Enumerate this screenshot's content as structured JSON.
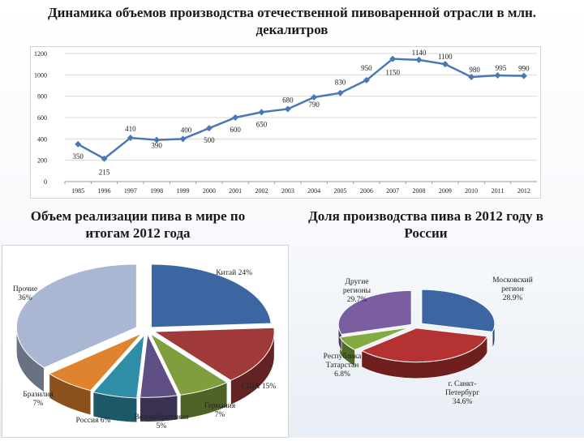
{
  "titles": {
    "main": "Динамика объемов производства отечественной пивоваренной отрасли в млн. декалитров",
    "pie1": "Объем реализации пива в мире по итогам 2012 года",
    "pie2": "Доля производства пива в 2012 году в России"
  },
  "colors": {
    "line": "#4a78b4",
    "pie1": [
      "#3b66a2",
      "#a0393a",
      "#7f9f3f",
      "#5f4f85",
      "#2f8ea5",
      "#e0832e",
      "#a9b7d3"
    ],
    "pie2": [
      "#3b66a2",
      "#b53232",
      "#84aa42",
      "#7a5ea0"
    ]
  },
  "chart_data": [
    {
      "type": "line",
      "title": "Динамика объемов производства отечественной пивоваренной отрасли в млн. декалитров",
      "categories": [
        "1985",
        "1996",
        "1997",
        "1998",
        "1999",
        "2000",
        "2001",
        "2002",
        "2003",
        "2004",
        "2005",
        "2006",
        "2007",
        "2008",
        "2009",
        "2010",
        "2011",
        "2012"
      ],
      "values": [
        350,
        215,
        410,
        390,
        400,
        500,
        600,
        650,
        680,
        790,
        830,
        950,
        1150,
        1140,
        1100,
        980,
        995,
        990
      ],
      "ylim": [
        0,
        1200
      ],
      "yticks": [
        "0",
        "200",
        "400",
        "600",
        "800",
        "1000",
        "1200"
      ],
      "grid": "horizontal"
    },
    {
      "type": "pie",
      "title": "Объем реализации пива в мире по итогам 2012 года",
      "labels": [
        "Китай 24%",
        "США 15%",
        "Германия 7%",
        "Великобритания 5%",
        "Россия 6%",
        "Бразилия 7%",
        "Прочие 36%"
      ],
      "values": [
        24,
        15,
        7,
        5,
        6,
        7,
        36
      ]
    },
    {
      "type": "pie",
      "title": "Доля производства пива в 2012 году в России",
      "labels": [
        "Московский регион 28.9%",
        "г. Санкт-Петербург 34.6%",
        "Республика Татарстан 6.8%",
        "Другие регионы 29.7%"
      ],
      "values": [
        28.9,
        34.6,
        6.8,
        29.7
      ]
    }
  ]
}
